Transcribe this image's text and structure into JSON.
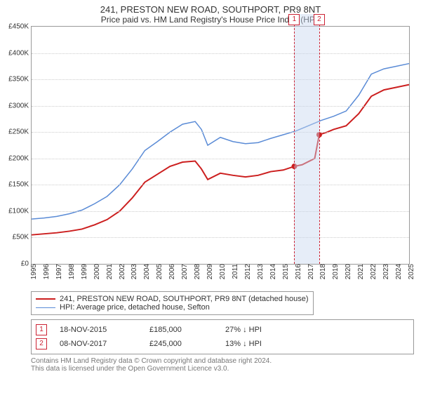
{
  "title": {
    "address": "241, PRESTON NEW ROAD, SOUTHPORT, PR9 8NT",
    "subtitle": "Price paid vs. HM Land Registry's House Price Index (HPI)"
  },
  "chart": {
    "type": "line",
    "background_color": "#ffffff",
    "grid_color": "#cccccc",
    "axis_color": "#999999",
    "label_fontsize": 10,
    "x": {
      "min": 1995,
      "max": 2025,
      "ticks": [
        1995,
        1996,
        1997,
        1998,
        1999,
        2000,
        2001,
        2002,
        2003,
        2004,
        2005,
        2006,
        2007,
        2008,
        2009,
        2010,
        2011,
        2012,
        2013,
        2014,
        2015,
        2016,
        2017,
        2018,
        2019,
        2020,
        2021,
        2022,
        2023,
        2024,
        2025
      ]
    },
    "y": {
      "min": 0,
      "max": 450000,
      "tick_step": 50000,
      "prefix": "£",
      "suffix": "K",
      "divisor": 1000
    },
    "series": [
      {
        "id": "property",
        "label": "241, PRESTON NEW ROAD, SOUTHPORT, PR9 8NT (detached house)",
        "color": "#cc1f1f",
        "line_width": 2,
        "points": [
          [
            1995,
            55000
          ],
          [
            1996,
            57000
          ],
          [
            1997,
            59000
          ],
          [
            1998,
            62000
          ],
          [
            1999,
            66000
          ],
          [
            2000,
            74000
          ],
          [
            2001,
            84000
          ],
          [
            2002,
            100000
          ],
          [
            2003,
            125000
          ],
          [
            2004,
            155000
          ],
          [
            2005,
            170000
          ],
          [
            2006,
            185000
          ],
          [
            2007,
            193000
          ],
          [
            2008,
            195000
          ],
          [
            2008.5,
            180000
          ],
          [
            2009,
            160000
          ],
          [
            2010,
            172000
          ],
          [
            2011,
            168000
          ],
          [
            2012,
            165000
          ],
          [
            2013,
            168000
          ],
          [
            2014,
            175000
          ],
          [
            2015,
            178000
          ],
          [
            2015.88,
            185000
          ],
          [
            2016.5,
            188000
          ],
          [
            2017.5,
            200000
          ],
          [
            2017.86,
            245000
          ],
          [
            2018.5,
            250000
          ],
          [
            2019,
            255000
          ],
          [
            2020,
            262000
          ],
          [
            2021,
            285000
          ],
          [
            2022,
            318000
          ],
          [
            2023,
            330000
          ],
          [
            2024,
            335000
          ],
          [
            2025,
            340000
          ]
        ]
      },
      {
        "id": "hpi",
        "label": "HPI: Average price, detached house, Sefton",
        "color": "#5a8bd6",
        "line_width": 1.5,
        "points": [
          [
            1995,
            85000
          ],
          [
            1996,
            87000
          ],
          [
            1997,
            90000
          ],
          [
            1998,
            95000
          ],
          [
            1999,
            102000
          ],
          [
            2000,
            114000
          ],
          [
            2001,
            128000
          ],
          [
            2002,
            150000
          ],
          [
            2003,
            180000
          ],
          [
            2004,
            215000
          ],
          [
            2005,
            232000
          ],
          [
            2006,
            250000
          ],
          [
            2007,
            265000
          ],
          [
            2008,
            270000
          ],
          [
            2008.5,
            255000
          ],
          [
            2009,
            225000
          ],
          [
            2010,
            240000
          ],
          [
            2011,
            232000
          ],
          [
            2012,
            228000
          ],
          [
            2013,
            230000
          ],
          [
            2014,
            238000
          ],
          [
            2015,
            245000
          ],
          [
            2016,
            252000
          ],
          [
            2017,
            262000
          ],
          [
            2018,
            272000
          ],
          [
            2019,
            280000
          ],
          [
            2020,
            290000
          ],
          [
            2021,
            320000
          ],
          [
            2022,
            360000
          ],
          [
            2023,
            370000
          ],
          [
            2024,
            375000
          ],
          [
            2025,
            380000
          ]
        ]
      }
    ],
    "sale_markers": [
      {
        "idx": "1",
        "x": 2015.88,
        "y": 185000
      },
      {
        "idx": "2",
        "x": 2017.86,
        "y": 245000
      }
    ],
    "marker_band_color": "rgba(200,215,240,0.45)",
    "marker_edge_color": "#c23"
  },
  "legend": {
    "items": [
      {
        "series": "property"
      },
      {
        "series": "hpi"
      }
    ]
  },
  "sales_table": {
    "rows": [
      {
        "idx": "1",
        "date": "18-NOV-2015",
        "price": "£185,000",
        "vs_hpi": "27% ↓ HPI"
      },
      {
        "idx": "2",
        "date": "08-NOV-2017",
        "price": "£245,000",
        "vs_hpi": "13% ↓ HPI"
      }
    ]
  },
  "footnote": {
    "line1": "Contains HM Land Registry data © Crown copyright and database right 2024.",
    "line2": "This data is licensed under the Open Government Licence v3.0."
  }
}
